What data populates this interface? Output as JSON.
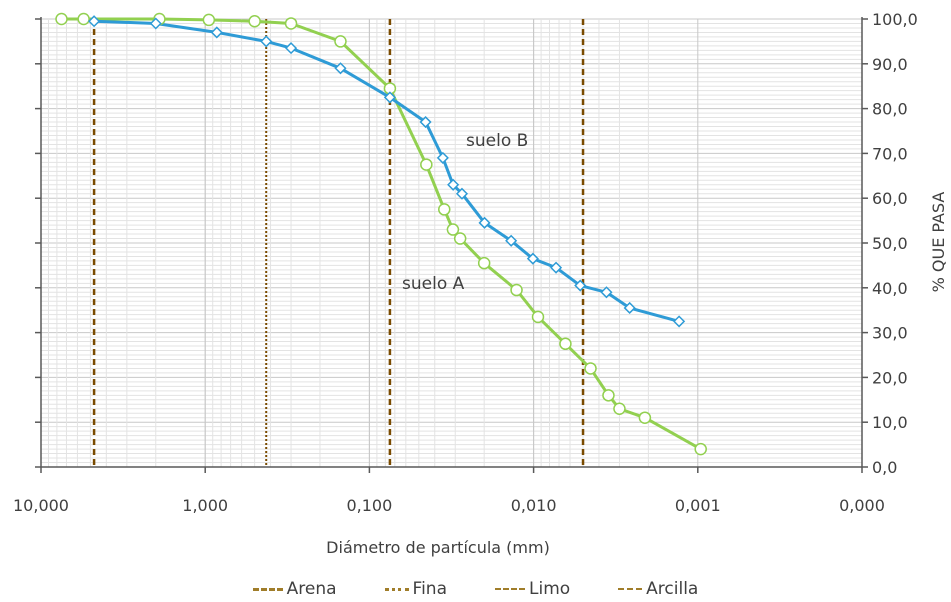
{
  "chart_data": {
    "type": "scatter",
    "xlabel": "Diámetro de partícula (mm)",
    "ylabel": "% QUE PASA",
    "x_scale": "log",
    "x_reversed": true,
    "xlim": [
      10,
      0.0001
    ],
    "ylim": [
      0,
      100
    ],
    "x_tick_labels": [
      "10,000",
      "1,000",
      "0,100",
      "0,010",
      "0,001",
      "0,000"
    ],
    "y_tick_labels": [
      "0,0",
      "10,0",
      "20,0",
      "30,0",
      "40,0",
      "50,0",
      "60,0",
      "70,0",
      "80,0",
      "90,0",
      "100,0"
    ],
    "y_axis_position": "right",
    "grid": true,
    "legend_position": "bottom",
    "series": [
      {
        "name": "suelo A",
        "color": "#92d050",
        "marker": "circle",
        "x": [
          7.5,
          5.5,
          1.9,
          0.95,
          0.5,
          0.3,
          0.15,
          0.075,
          0.045,
          0.035,
          0.031,
          0.028,
          0.02,
          0.0127,
          0.0094,
          0.0064,
          0.0045,
          0.0035,
          0.003,
          0.0021,
          0.00096
        ],
        "y": [
          100,
          100,
          100,
          99.8,
          99.5,
          99,
          95,
          84.5,
          67.5,
          57.5,
          53,
          51,
          45.5,
          39.5,
          33.5,
          27.5,
          22,
          16,
          13,
          11,
          4
        ]
      },
      {
        "name": "suelo B",
        "color": "#2e9bd6",
        "marker": "diamond",
        "x": [
          4.75,
          2.0,
          0.85,
          0.425,
          0.3,
          0.15,
          0.075,
          0.0455,
          0.0357,
          0.0309,
          0.0273,
          0.0199,
          0.0137,
          0.0101,
          0.0073,
          0.0052,
          0.0036,
          0.0026,
          0.0013
        ],
        "y": [
          99.5,
          99,
          97,
          95,
          93.5,
          89,
          82.5,
          77,
          69,
          63,
          61,
          54.5,
          50.5,
          46.5,
          44.5,
          40.5,
          39,
          35.5,
          32.5
        ]
      }
    ],
    "annotations": [
      "suelo A",
      "suelo B"
    ],
    "boundaries": [
      {
        "name": "Arena",
        "x": 4.75,
        "style": "dashed",
        "color": "#7a4b00"
      },
      {
        "name": "Fina",
        "x": 0.425,
        "style": "dotted",
        "color": "#7a4b00"
      },
      {
        "name": "Limo",
        "x": 0.075,
        "style": "dashed",
        "color": "#7a4b00"
      },
      {
        "name": "Arcilla",
        "x": 0.005,
        "style": "dashed",
        "color": "#7a4b00"
      }
    ],
    "legend": [
      {
        "label": "Arena",
        "style": "dashed",
        "color": "#a07d2a"
      },
      {
        "label": "Fina",
        "style": "dotted",
        "color": "#a07d2a"
      },
      {
        "label": "Limo",
        "style": "dashed",
        "color": "#a07d2a"
      },
      {
        "label": "Arcilla",
        "style": "dashed",
        "color": "#a07d2a"
      }
    ]
  }
}
